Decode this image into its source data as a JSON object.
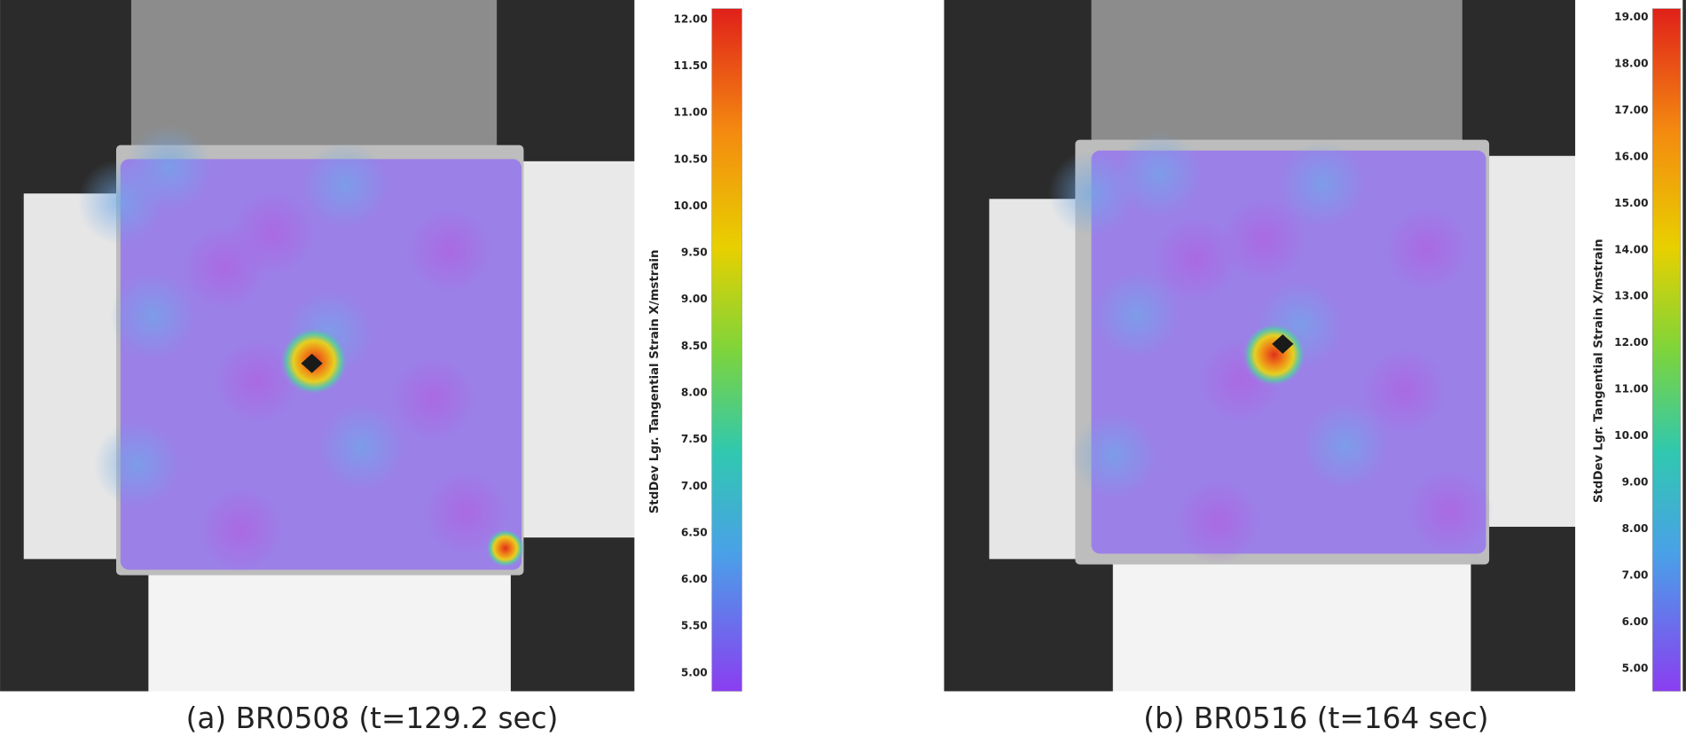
{
  "panels": [
    {
      "caption": "(a) BR0508 (t=129.2 sec)",
      "colorbar": {
        "label": "StdDev Lgr. Tangential Strain X/mstrain",
        "ticks": [
          {
            "value": 12,
            "label": "12.00"
          },
          {
            "value": 11.5,
            "label": "11.50"
          },
          {
            "value": 11,
            "label": "11.00"
          },
          {
            "value": 10.5,
            "label": "10.50"
          },
          {
            "value": 10,
            "label": "10.00"
          },
          {
            "value": 9.5,
            "label": "9.50"
          },
          {
            "value": 9,
            "label": "9.00"
          },
          {
            "value": 8.5,
            "label": "8.50"
          },
          {
            "value": 8,
            "label": "8.00"
          },
          {
            "value": 7.5,
            "label": "7.50"
          },
          {
            "value": 7,
            "label": "7.00"
          },
          {
            "value": 6.5,
            "label": "6.50"
          },
          {
            "value": 6,
            "label": "6.00"
          },
          {
            "value": 5.5,
            "label": "5.50"
          },
          {
            "value": 5,
            "label": "5.00"
          }
        ]
      }
    },
    {
      "caption": "(b) BR0516 (t=164 sec)",
      "colorbar": {
        "label": "StdDev Lgr. Tangential Strain X/mstrain",
        "ticks": [
          {
            "value": 19,
            "label": "19.00"
          },
          {
            "value": 18,
            "label": "18.00"
          },
          {
            "value": 17,
            "label": "17.00"
          },
          {
            "value": 16,
            "label": "16.00"
          },
          {
            "value": 15,
            "label": "15.00"
          },
          {
            "value": 14,
            "label": "14.00"
          },
          {
            "value": 13,
            "label": "13.00"
          },
          {
            "value": 12,
            "label": "12.00"
          },
          {
            "value": 11,
            "label": "11.00"
          },
          {
            "value": 10,
            "label": "10.00"
          },
          {
            "value": 9,
            "label": "9.00"
          },
          {
            "value": 8,
            "label": "8.00"
          },
          {
            "value": 7,
            "label": "7.00"
          },
          {
            "value": 6,
            "label": "6.00"
          },
          {
            "value": 5,
            "label": "5.00"
          }
        ]
      }
    }
  ]
}
